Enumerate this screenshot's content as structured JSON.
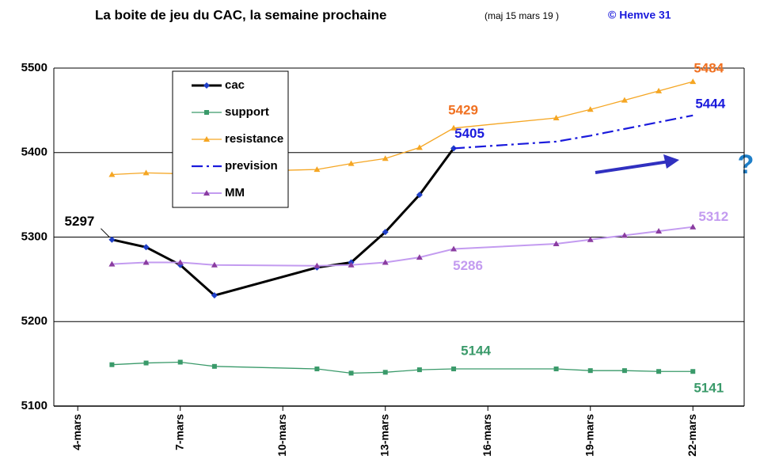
{
  "chart_data": {
    "type": "line",
    "title": "La boite de jeu du CAC, la semaine prochaine",
    "subtitle": "(maj 15 mars 19  )",
    "credit": "© Hemve 31",
    "annotation": "?",
    "x": [
      5,
      6,
      7,
      8,
      11,
      12,
      13,
      14,
      15,
      18,
      19,
      20,
      21,
      22
    ],
    "xlim": [
      3.3,
      23.5
    ],
    "xticks": [
      {
        "value": 4,
        "label": "4-mars"
      },
      {
        "value": 7,
        "label": "7-mars"
      },
      {
        "value": 10,
        "label": "10-mars"
      },
      {
        "value": 13,
        "label": "13-mars"
      },
      {
        "value": 16,
        "label": "16-mars"
      },
      {
        "value": 19,
        "label": "19-mars"
      },
      {
        "value": 22,
        "label": "22-mars"
      }
    ],
    "ylim": [
      5100,
      5500
    ],
    "yticks": [
      5100,
      5200,
      5300,
      5400,
      5500
    ],
    "grid": true,
    "legend": "upper left",
    "series": [
      {
        "name": "cac",
        "color": "#000000",
        "marker": "diamond",
        "marker_color": "#1f3fc8",
        "width": 3,
        "dash": false,
        "values": [
          5297,
          5288,
          5267,
          5231,
          5264,
          5270,
          5306,
          5350,
          5405,
          null,
          null,
          null,
          null,
          null
        ],
        "value_labels": [
          "5297",
          null,
          null,
          null,
          null,
          null,
          null,
          null,
          "5405",
          null,
          null,
          null,
          null,
          null
        ]
      },
      {
        "name": "support",
        "color": "#3a9a6a",
        "marker": "square",
        "marker_color": "#3a9a6a",
        "width": 1.3,
        "dash": false,
        "values": [
          5149,
          5151,
          5152,
          5147,
          5144,
          5139,
          5140,
          5143,
          5144,
          5144,
          5142,
          5142,
          5141,
          5141
        ],
        "value_labels": [
          null,
          null,
          null,
          null,
          null,
          null,
          null,
          null,
          "5144",
          null,
          null,
          null,
          null,
          "5141"
        ]
      },
      {
        "name": "resistance",
        "color": "#f5a623",
        "marker": "triangle",
        "marker_color": "#f5a623",
        "width": 1.3,
        "dash": false,
        "values": [
          5374,
          5376,
          5375,
          5377,
          5380,
          5387,
          5393,
          5406,
          5429,
          5441,
          5451,
          5462,
          5473,
          5484
        ],
        "value_labels": [
          null,
          null,
          null,
          null,
          null,
          null,
          null,
          null,
          "5429",
          null,
          null,
          null,
          null,
          "5484"
        ]
      },
      {
        "name": "prevision",
        "color": "#1a1adc",
        "marker": "none",
        "marker_color": "#1a1adc",
        "width": 2.2,
        "dash": true,
        "values": [
          null,
          null,
          null,
          null,
          null,
          null,
          null,
          null,
          5405,
          5413,
          5420,
          5428,
          5436,
          5444
        ],
        "value_labels": [
          null,
          null,
          null,
          null,
          null,
          null,
          null,
          null,
          null,
          null,
          null,
          null,
          null,
          "5444"
        ]
      },
      {
        "name": "MM",
        "color": "#c39bf0",
        "marker": "triangle",
        "marker_color": "#8a3ca0",
        "width": 2,
        "dash": false,
        "values": [
          5268,
          5270,
          5270,
          5267,
          5266,
          5267,
          5270,
          5276,
          5286,
          5292,
          5297,
          5302,
          5307,
          5312
        ],
        "value_labels": [
          null,
          null,
          null,
          null,
          null,
          null,
          null,
          null,
          "5286",
          null,
          null,
          null,
          null,
          "5312"
        ]
      }
    ]
  }
}
